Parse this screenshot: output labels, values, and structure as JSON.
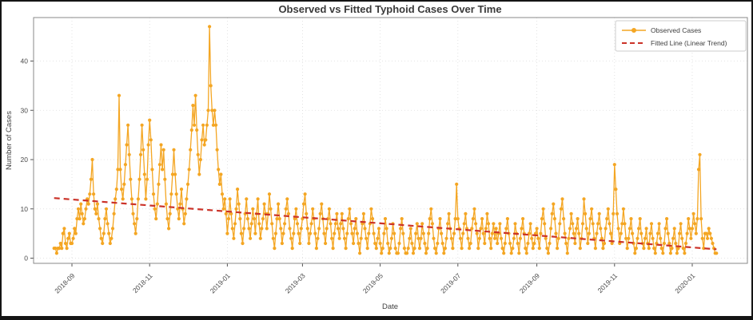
{
  "figure": {
    "border_color": "#141414",
    "background_color": "#ffffff"
  },
  "chart_data": {
    "type": "line",
    "title": "Observed vs Fitted Typhoid Cases Over Time",
    "xlabel": "Date",
    "ylabel": "Number of Cases",
    "grid": true,
    "grid_color": "#dcdcdc",
    "spine_color": "#8a8a8a",
    "x_start_date": "2018-08-18",
    "x_tick_labels": [
      "2018-09",
      "2018-11",
      "2019-01",
      "2019-03",
      "2019-05",
      "2019-07",
      "2019-09",
      "2019-11",
      "2020-01"
    ],
    "y_ticks": [
      0,
      10,
      20,
      30,
      40
    ],
    "ylim": [
      -1,
      48.8
    ],
    "legend": {
      "position": "upper right",
      "entries": [
        "Observed Cases",
        "Fitted Line (Linear Trend)"
      ]
    },
    "series": [
      {
        "name": "Observed Cases",
        "style": "solid-line-with-circle-markers",
        "color": "#F4A623",
        "cadence": "daily",
        "values": [
          2,
          2,
          1,
          2,
          2,
          3,
          2,
          5,
          6,
          3,
          2,
          4,
          5,
          3,
          3,
          4,
          6,
          5,
          8,
          10,
          8,
          11,
          9,
          7,
          8,
          10,
          12,
          11,
          13,
          16,
          20,
          13,
          10,
          9,
          11,
          8,
          6,
          4,
          3,
          5,
          8,
          10,
          7,
          5,
          3,
          4,
          6,
          9,
          12,
          14,
          18,
          33,
          18,
          14,
          12,
          15,
          19,
          23,
          27,
          21,
          16,
          12,
          9,
          7,
          5,
          8,
          12,
          16,
          21,
          27,
          22,
          17,
          12,
          16,
          23,
          28,
          24,
          18,
          13,
          10,
          8,
          11,
          15,
          19,
          23,
          18,
          22,
          16,
          11,
          8,
          6,
          9,
          13,
          17,
          22,
          17,
          13,
          10,
          8,
          11,
          14,
          10,
          7,
          9,
          12,
          15,
          18,
          22,
          26,
          31,
          27,
          33,
          26,
          21,
          17,
          20,
          24,
          27,
          23,
          24,
          27,
          30,
          47,
          35,
          30,
          27,
          30,
          27,
          22,
          18,
          15,
          17,
          13,
          10,
          12,
          9,
          5,
          8,
          12,
          9,
          6,
          4,
          7,
          10,
          14,
          11,
          8,
          5,
          3,
          6,
          9,
          12,
          8,
          6,
          4,
          7,
          10,
          8,
          5,
          9,
          12,
          7,
          4,
          6,
          8,
          11,
          9,
          6,
          9,
          13,
          10,
          7,
          4,
          2,
          5,
          8,
          11,
          8,
          6,
          3,
          5,
          7,
          10,
          12,
          9,
          6,
          4,
          2,
          5,
          8,
          10,
          7,
          5,
          3,
          6,
          8,
          11,
          13,
          9,
          6,
          3,
          5,
          7,
          10,
          8,
          5,
          2,
          4,
          6,
          9,
          11,
          8,
          5,
          3,
          6,
          8,
          10,
          7,
          4,
          2,
          5,
          7,
          9,
          6,
          4,
          7,
          9,
          6,
          4,
          2,
          5,
          8,
          10,
          7,
          5,
          3,
          6,
          8,
          5,
          3,
          1,
          4,
          7,
          9,
          6,
          4,
          2,
          5,
          7,
          10,
          8,
          5,
          3,
          2,
          4,
          6,
          3,
          1,
          2,
          5,
          8,
          6,
          3,
          1,
          2,
          4,
          7,
          5,
          2,
          1,
          1,
          3,
          6,
          8,
          5,
          2,
          1,
          1,
          2,
          4,
          6,
          3,
          1,
          2,
          5,
          7,
          4,
          2,
          4,
          7,
          5,
          3,
          1,
          2,
          5,
          8,
          10,
          7,
          4,
          2,
          1,
          3,
          6,
          8,
          5,
          3,
          1,
          2,
          4,
          7,
          9,
          6,
          4,
          2,
          5,
          8,
          15,
          8,
          6,
          4,
          2,
          5,
          7,
          9,
          6,
          4,
          2,
          3,
          6,
          8,
          10,
          7,
          5,
          2,
          4,
          6,
          8,
          5,
          3,
          6,
          9,
          7,
          4,
          2,
          5,
          7,
          4,
          6,
          3,
          5,
          7,
          4,
          2,
          1,
          3,
          6,
          8,
          5,
          3,
          1,
          2,
          4,
          7,
          5,
          3,
          1,
          4,
          6,
          8,
          5,
          2,
          1,
          3,
          5,
          7,
          4,
          2,
          3,
          5,
          6,
          4,
          2,
          5,
          8,
          10,
          7,
          4,
          2,
          1,
          3,
          6,
          9,
          11,
          8,
          5,
          2,
          4,
          7,
          10,
          12,
          8,
          5,
          3,
          1,
          4,
          6,
          9,
          7,
          5,
          3,
          6,
          8,
          5,
          2,
          4,
          7,
          12,
          9,
          6,
          3,
          5,
          8,
          10,
          7,
          4,
          2,
          5,
          7,
          9,
          6,
          4,
          2,
          3,
          6,
          8,
          10,
          7,
          5,
          3,
          9,
          19,
          14,
          9,
          6,
          3,
          5,
          7,
          10,
          7,
          4,
          2,
          4,
          6,
          8,
          5,
          3,
          1,
          2,
          4,
          6,
          8,
          5,
          3,
          2,
          4,
          6,
          3,
          2,
          5,
          7,
          4,
          2,
          1,
          3,
          5,
          7,
          4,
          2,
          1,
          3,
          6,
          8,
          5,
          3,
          1,
          2,
          4,
          6,
          3,
          1,
          2,
          5,
          7,
          4,
          2,
          1,
          3,
          5,
          8,
          6,
          4,
          6,
          9,
          7,
          5,
          8,
          18,
          21,
          8,
          4,
          2,
          5,
          5,
          4,
          6,
          5,
          4,
          3,
          2,
          1,
          1
        ]
      },
      {
        "name": "Fitted Line (Linear Trend)",
        "style": "dashed-line",
        "color": "#CB3228",
        "trend": {
          "start_value": 12.2,
          "end_value": 1.8
        }
      }
    ]
  }
}
